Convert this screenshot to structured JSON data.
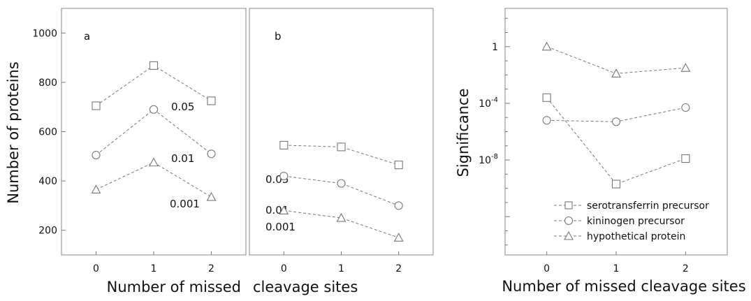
{
  "chart_data": [
    {
      "type": "line",
      "panel": "a",
      "x": [
        0,
        1,
        2
      ],
      "xticks": [
        "0",
        "1",
        "2"
      ],
      "yticks": [
        "200",
        "400",
        "600",
        "800",
        "1000"
      ],
      "ylabel": "Number of proteins",
      "xlabel": "Number of missed",
      "ylim": [
        100,
        1100
      ],
      "xlim": [
        -0.6,
        2.6
      ],
      "series": [
        {
          "label": "0.05",
          "marker": "square",
          "values": [
            705,
            868,
            725
          ]
        },
        {
          "label": "0.01",
          "marker": "circle",
          "values": [
            505,
            690,
            510
          ]
        },
        {
          "label": "0.001",
          "marker": "triangle",
          "values": [
            365,
            475,
            335
          ]
        }
      ]
    },
    {
      "type": "line",
      "panel": "b",
      "x": [
        0,
        1,
        2
      ],
      "xticks": [
        "0",
        "1",
        "2"
      ],
      "xlabel": "cleavage sites",
      "ylim": [
        100,
        1100
      ],
      "xlim": [
        -0.6,
        2.6
      ],
      "series": [
        {
          "label": "0.05",
          "marker": "square",
          "values": [
            545,
            538,
            465
          ]
        },
        {
          "label": "0.01",
          "marker": "circle",
          "values": [
            420,
            390,
            300
          ]
        },
        {
          "label": "0.001",
          "marker": "triangle",
          "values": [
            280,
            250,
            170
          ]
        }
      ]
    },
    {
      "type": "line",
      "x": [
        0,
        1,
        2
      ],
      "xticks": [
        "0",
        "1",
        "2"
      ],
      "yticks": [
        {
          "base": "1",
          "exp": ""
        },
        {
          "base": "10",
          "exp": "-4"
        },
        {
          "base": "10",
          "exp": "-8"
        }
      ],
      "ylabel": "Significance",
      "xlabel": "Number of missed cleavage sites",
      "yscale": "log",
      "ylim_log10": [
        -14.7,
        2.7
      ],
      "xlim": [
        -0.6,
        2.6
      ],
      "legend_position": "bottom-right",
      "series": [
        {
          "name": "serotransferrin precursor",
          "marker": "square",
          "log10_values": [
            -3.6,
            -9.7,
            -7.9
          ]
        },
        {
          "name": "kininogen precursor",
          "marker": "circle",
          "log10_values": [
            -5.2,
            -5.3,
            -4.3
          ]
        },
        {
          "name": "hypothetical protein",
          "marker": "triangle",
          "log10_values": [
            0,
            -1.9,
            -1.5
          ]
        }
      ]
    }
  ]
}
